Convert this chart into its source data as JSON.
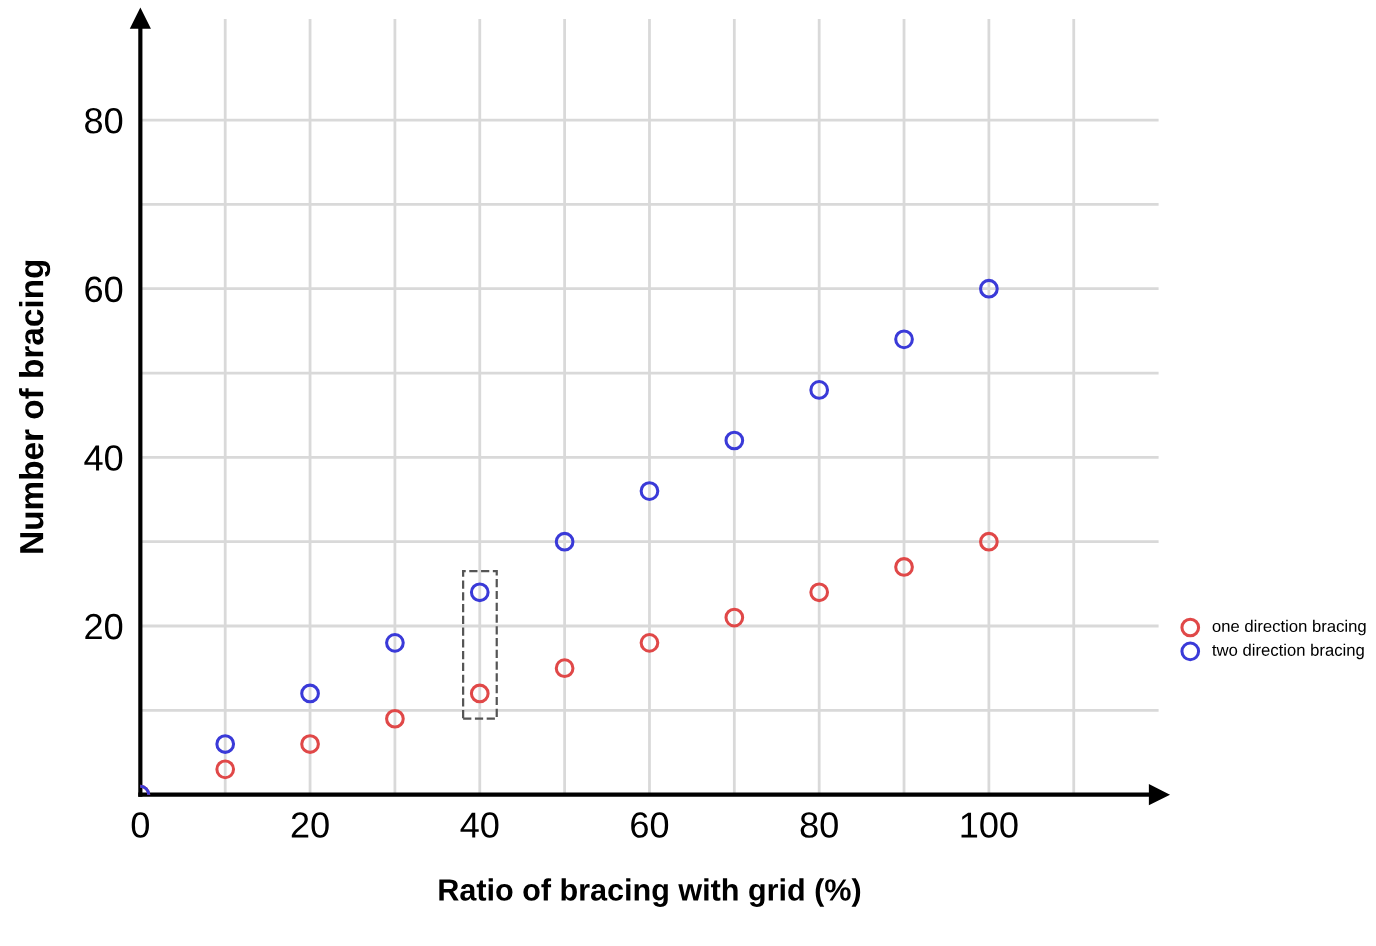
{
  "chart_data": {
    "type": "scatter",
    "xlabel": "Ratio of bracing with grid (%)",
    "ylabel": "Number of bracing",
    "x": [
      0,
      10,
      20,
      30,
      40,
      50,
      60,
      70,
      80,
      90,
      100
    ],
    "series": [
      {
        "name": "one direction bracing",
        "color": "#e04848",
        "values": [
          0,
          3,
          6,
          9,
          12,
          15,
          18,
          21,
          24,
          27,
          30
        ]
      },
      {
        "name": "two direction bracing",
        "color": "#3a3ad8",
        "values": [
          0,
          6,
          12,
          18,
          24,
          30,
          36,
          42,
          48,
          54,
          60
        ]
      }
    ],
    "xlim": [
      0,
      120
    ],
    "ylim": [
      0,
      92
    ],
    "xticks": [
      0,
      {
        "value": 10,
        "label": null
      },
      20,
      {
        "value": 30,
        "label": null
      },
      40,
      {
        "value": 50,
        "label": null
      },
      60,
      {
        "value": 70,
        "label": null
      },
      80,
      {
        "value": 90,
        "label": null
      },
      100,
      {
        "value": 110,
        "label": null
      }
    ],
    "yticks": [
      {
        "value": 10,
        "label": null
      },
      20,
      {
        "value": 30,
        "label": null
      },
      40,
      {
        "value": 50,
        "label": null
      },
      60,
      {
        "value": 70,
        "label": null
      },
      80
    ],
    "grid": true,
    "marker": "circle",
    "legend": "right"
  }
}
